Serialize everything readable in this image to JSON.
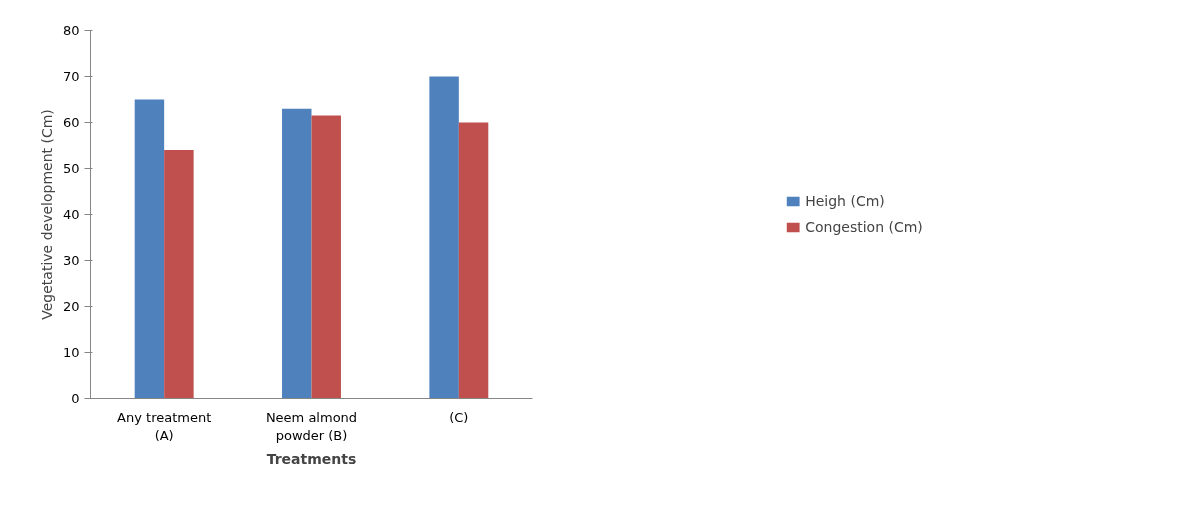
{
  "chart_data": {
    "type": "bar",
    "xlabel": "Treatments",
    "ylabel": "Vegetative development (Cm)",
    "categories": [
      "Any treatment\n(A)",
      "Neem almond\npowder (B)",
      "(C)"
    ],
    "series": [
      {
        "name": "Heigh (Cm)",
        "color": "#4f81bd",
        "values": [
          65,
          63,
          70
        ]
      },
      {
        "name": "Congestion (Cm)",
        "color": "#c0504d",
        "values": [
          54,
          61.5,
          60
        ]
      }
    ],
    "ylim": [
      0,
      80
    ],
    "yticks": [
      0,
      10,
      20,
      30,
      40,
      50,
      60,
      70,
      80
    ],
    "grid": false,
    "legend": "right"
  }
}
